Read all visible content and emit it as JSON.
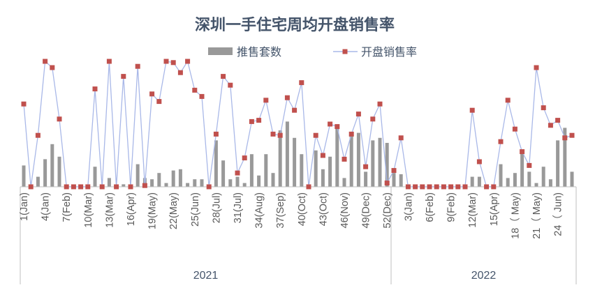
{
  "chart_data": {
    "type": "bar+line",
    "title": "深圳一手住宅周均开盘销售率",
    "legend": {
      "position": "top",
      "items": [
        "推售套数",
        "开盘销售率"
      ]
    },
    "colors": {
      "bar": "#999999",
      "line": "#a9b8e8",
      "marker": "#c0504d",
      "title": "#44546a"
    },
    "axes_shown": {
      "y": false,
      "grid": false
    },
    "groups": [
      {
        "label": "2021",
        "weeks": 52,
        "tick_labels": [
          "1(Jan)",
          "4(Jan)",
          "7(Feb)",
          "10(Mar)",
          "13(Mar)",
          "16(Apr)",
          "19(May)",
          "22(May)",
          "25(Jun)",
          "28(Jul)",
          "31(Jul)",
          "34(Aug)",
          "37(Sep)",
          "40(Oct)",
          "43(Oct)",
          "46(Nov)",
          "49(Dec)",
          "52(Dec)"
        ]
      },
      {
        "label": "2022",
        "weeks": 26,
        "tick_labels": [
          "3(Jan)",
          "6(Feb)",
          "9(Feb)",
          "12(Mar)",
          "15(Apr)",
          "18（ May)",
          "21（ May)",
          "24（ Jun)"
        ]
      }
    ],
    "tick_every": 3,
    "series": [
      {
        "name": "推售套数",
        "type": "bar",
        "note_units": "relative",
        "values": [
          17,
          0,
          8,
          22,
          34,
          24,
          0,
          0,
          0,
          0,
          16,
          0,
          7,
          0,
          2,
          0,
          18,
          7,
          6,
          11,
          3,
          13,
          14,
          3,
          6,
          6,
          0,
          37,
          21,
          6,
          8,
          3,
          26,
          9,
          26,
          11,
          45,
          52,
          39,
          26,
          0,
          29,
          14,
          24,
          47,
          7,
          41,
          43,
          12,
          37,
          39,
          35,
          11,
          10,
          0,
          0,
          0,
          0,
          0,
          0,
          0,
          0,
          0,
          8,
          8,
          0,
          0,
          18,
          7,
          11,
          27,
          12,
          3,
          16,
          6,
          37,
          47,
          12
        ]
      },
      {
        "name": "开盘销售率",
        "type": "line",
        "values": [
          66,
          0,
          41,
          100,
          95,
          54,
          0,
          0,
          0,
          0,
          78,
          0,
          100,
          0,
          88,
          0,
          96,
          1,
          74,
          68,
          100,
          99,
          91,
          100,
          77,
          72,
          0,
          42,
          88,
          81,
          11,
          23,
          52,
          53,
          69,
          42,
          41,
          71,
          61,
          83,
          0,
          41,
          25,
          50,
          48,
          22,
          42,
          58,
          16,
          54,
          66,
          3,
          13,
          39,
          0,
          0,
          0,
          0,
          0,
          0,
          0,
          0,
          0,
          61,
          20,
          0,
          0,
          36,
          69,
          46,
          28,
          17,
          95,
          63,
          49,
          53,
          39,
          41
        ]
      }
    ]
  }
}
